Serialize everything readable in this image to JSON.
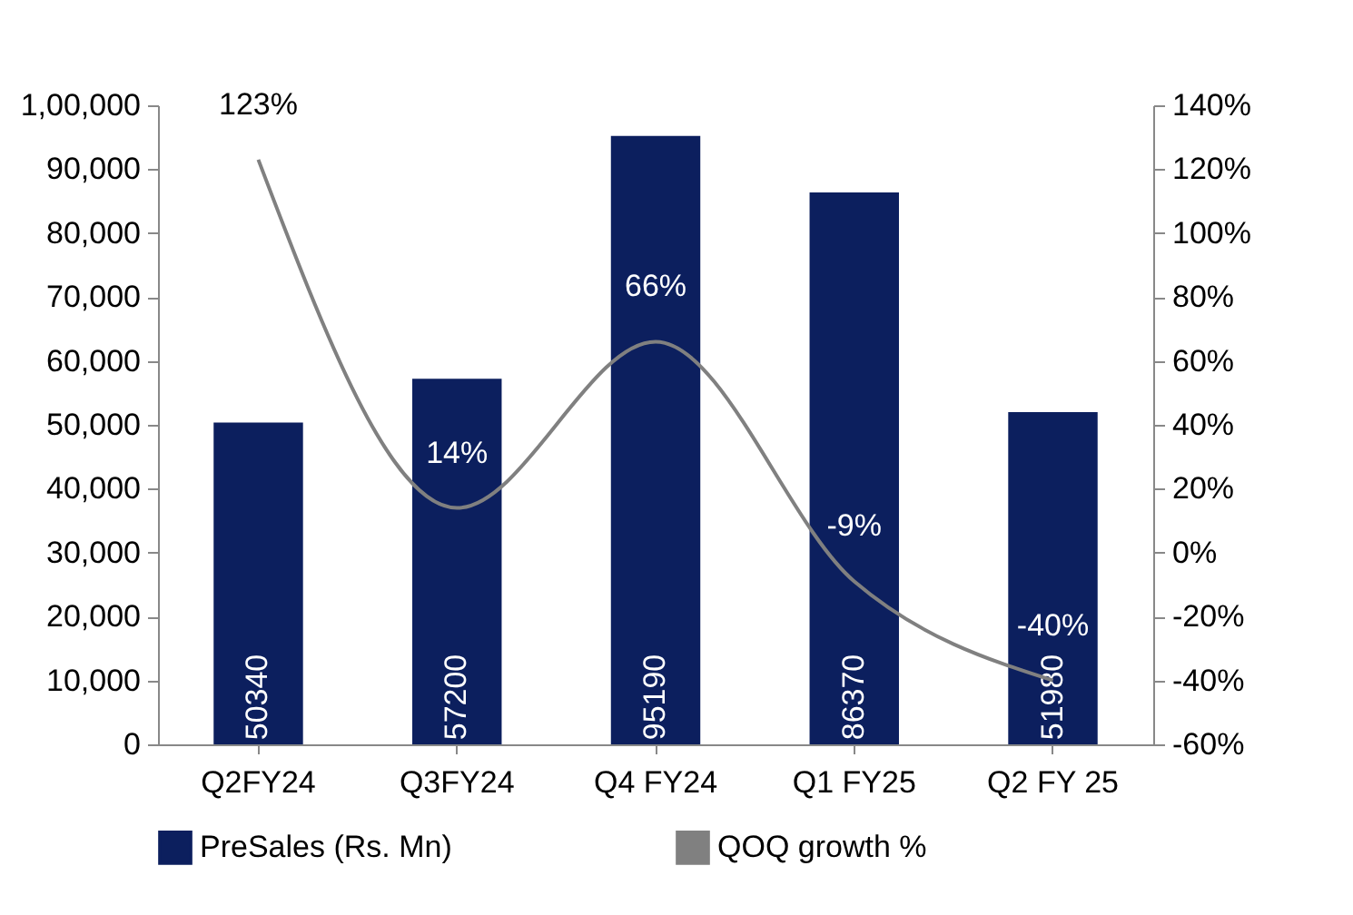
{
  "chart_data": {
    "type": "bar",
    "categories": [
      "Q2FY24",
      "Q3FY24",
      "Q4 FY24",
      "Q1 FY25",
      "Q2 FY 25"
    ],
    "series": [
      {
        "name": "PreSales (Rs. Mn)",
        "color": "#0c1f5e",
        "values": [
          50340,
          57200,
          95190,
          86370,
          51980
        ],
        "value_labels": [
          "50340",
          "57200",
          "95190",
          "86370",
          "51980"
        ]
      },
      {
        "name": "QOQ growth %",
        "type": "line",
        "axis": "y2",
        "color": "#808080",
        "values": [
          123,
          14,
          66,
          -9,
          -40
        ],
        "value_labels": [
          "123%",
          "14%",
          "66%",
          "-9%",
          "-40%"
        ]
      }
    ],
    "ylim": [
      0,
      100000
    ],
    "yticks": [
      0,
      {
        "value": 10000,
        "label": "10,000"
      },
      {
        "value": 20000,
        "label": "20,000"
      },
      {
        "value": 30000,
        "label": "30,000"
      },
      {
        "value": 40000,
        "label": "40,000"
      },
      {
        "value": 50000,
        "label": "50,000"
      },
      {
        "value": 60000,
        "label": "60,000"
      },
      {
        "value": 70000,
        "label": "70,000"
      },
      {
        "value": 80000,
        "label": "80,000"
      },
      {
        "value": 90000,
        "label": "90,000"
      },
      {
        "value": 100000,
        "label": "1,00,000"
      }
    ],
    "y2lim": [
      -60,
      140
    ],
    "y2ticks": [
      {
        "value": -60,
        "label": "-60%"
      },
      {
        "value": -40,
        "label": "-40%"
      },
      {
        "value": -20,
        "label": "-20%"
      },
      {
        "value": 0,
        "label": "0%"
      },
      {
        "value": 20,
        "label": "20%"
      },
      {
        "value": 40,
        "label": "40%"
      },
      {
        "value": 60,
        "label": "60%"
      },
      {
        "value": 80,
        "label": "80%"
      },
      {
        "value": 100,
        "label": "100%"
      },
      {
        "value": 120,
        "label": "120%"
      },
      {
        "value": 140,
        "label": "140%"
      }
    ],
    "grid": false,
    "legend": "bottom"
  }
}
